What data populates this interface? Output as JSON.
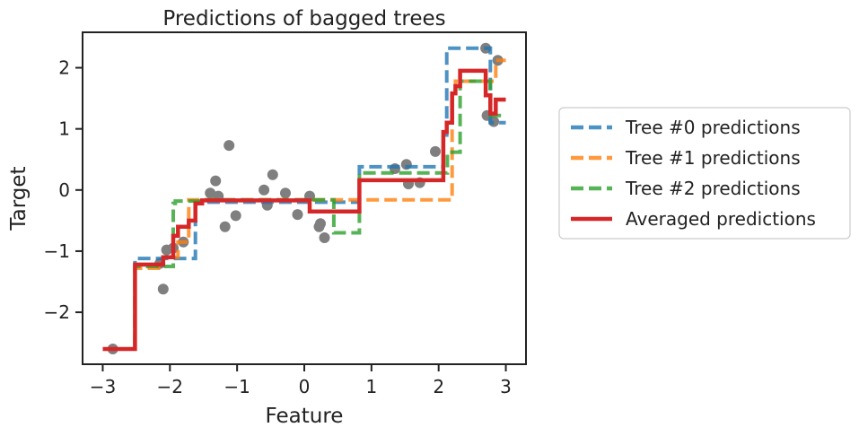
{
  "chart_data": {
    "type": "line",
    "title": "Predictions of bagged trees",
    "xlabel": "Feature",
    "ylabel": "Target",
    "xlim": [
      -3.3,
      3.3
    ],
    "ylim": [
      -2.85,
      2.58
    ],
    "xticks": [
      -3,
      -2,
      -1,
      0,
      1,
      2,
      3
    ],
    "xtick_labels": [
      "−3",
      "−2",
      "−1",
      "0",
      "1",
      "2",
      "3"
    ],
    "yticks": [
      -2,
      -1,
      0,
      1,
      2
    ],
    "ytick_labels": [
      "−2",
      "−1",
      "0",
      "1",
      "2"
    ],
    "grid": false,
    "legend_placement": "outside-right",
    "scatter": {
      "color": "#7f7f7f",
      "points": [
        [
          -2.85,
          -2.6
        ],
        [
          -2.15,
          -1.2
        ],
        [
          -2.1,
          -1.62
        ],
        [
          -2.05,
          -0.98
        ],
        [
          -1.95,
          -0.95
        ],
        [
          -1.8,
          -0.85
        ],
        [
          -1.4,
          -0.05
        ],
        [
          -1.32,
          0.15
        ],
        [
          -1.28,
          -0.1
        ],
        [
          -1.18,
          -0.6
        ],
        [
          -1.12,
          0.73
        ],
        [
          -1.02,
          -0.42
        ],
        [
          -0.6,
          0.0
        ],
        [
          -0.55,
          -0.25
        ],
        [
          -0.47,
          0.25
        ],
        [
          -0.28,
          -0.05
        ],
        [
          -0.1,
          -0.4
        ],
        [
          0.08,
          -0.1
        ],
        [
          0.22,
          -0.6
        ],
        [
          0.24,
          -0.55
        ],
        [
          0.3,
          -0.78
        ],
        [
          1.35,
          0.35
        ],
        [
          1.52,
          0.42
        ],
        [
          1.55,
          0.1
        ],
        [
          1.72,
          0.12
        ],
        [
          1.95,
          0.63
        ],
        [
          2.7,
          2.32
        ],
        [
          2.72,
          1.22
        ],
        [
          2.82,
          1.12
        ],
        [
          2.88,
          2.12
        ]
      ]
    },
    "series": [
      {
        "name": "Tree #0 predictions",
        "color": "#1f77b4",
        "dashed": true,
        "x": [
          -3.0,
          -2.52,
          -2.52,
          -1.62,
          -1.62,
          0.82,
          0.82,
          2.07,
          2.07,
          2.12,
          2.12,
          2.77,
          2.77,
          3.0
        ],
        "y": [
          -2.6,
          -2.6,
          -1.12,
          -1.12,
          -0.2,
          -0.2,
          0.38,
          0.38,
          0.9,
          0.9,
          2.32,
          2.32,
          1.1,
          1.1
        ]
      },
      {
        "name": "Tree #1 predictions",
        "color": "#ff7f0e",
        "dashed": true,
        "x": [
          -3.0,
          -2.52,
          -2.52,
          -2.1,
          -2.1,
          -1.88,
          -1.88,
          -1.72,
          -1.72,
          2.2,
          2.2,
          2.25,
          2.25,
          2.85,
          2.85,
          3.0
        ],
        "y": [
          -2.6,
          -2.6,
          -1.28,
          -1.28,
          -1.1,
          -1.1,
          -0.85,
          -0.85,
          -0.16,
          -0.16,
          1.6,
          1.6,
          1.78,
          1.78,
          2.12,
          2.12
        ]
      },
      {
        "name": "Tree #2 predictions",
        "color": "#2ca02c",
        "dashed": true,
        "x": [
          -3.0,
          -2.52,
          -2.52,
          -1.95,
          -1.95,
          -1.92,
          -1.92,
          -1.52,
          -1.52,
          0.44,
          0.44,
          0.82,
          0.82,
          2.13,
          2.13,
          2.32,
          2.32,
          2.77,
          2.77,
          3.0
        ],
        "y": [
          -2.6,
          -2.6,
          -1.25,
          -1.25,
          -0.22,
          -0.22,
          -0.18,
          -0.18,
          -0.16,
          -0.16,
          -0.7,
          -0.7,
          0.28,
          0.28,
          0.62,
          0.62,
          1.78,
          1.78,
          1.22,
          1.22
        ]
      },
      {
        "name": "Averaged predictions",
        "color": "#d62728",
        "dashed": false,
        "x": [
          -3.0,
          -2.52,
          -2.52,
          -2.1,
          -2.1,
          -1.95,
          -1.95,
          -1.88,
          -1.88,
          -1.72,
          -1.72,
          -1.62,
          -1.62,
          -1.52,
          -1.52,
          0.08,
          0.08,
          0.82,
          0.82,
          2.07,
          2.07,
          2.12,
          2.12,
          2.2,
          2.2,
          2.25,
          2.25,
          2.32,
          2.32,
          2.7,
          2.7,
          2.77,
          2.77,
          2.85,
          2.85,
          3.0
        ],
        "y": [
          -2.6,
          -2.6,
          -1.22,
          -1.22,
          -1.1,
          -1.1,
          -0.75,
          -0.75,
          -0.6,
          -0.6,
          -0.5,
          -0.5,
          -0.22,
          -0.22,
          -0.17,
          -0.17,
          -0.35,
          -0.35,
          0.16,
          0.16,
          0.95,
          0.95,
          1.1,
          1.1,
          1.58,
          1.58,
          1.7,
          1.7,
          1.95,
          1.95,
          1.55,
          1.55,
          1.25,
          1.25,
          1.48,
          1.48
        ]
      }
    ]
  }
}
